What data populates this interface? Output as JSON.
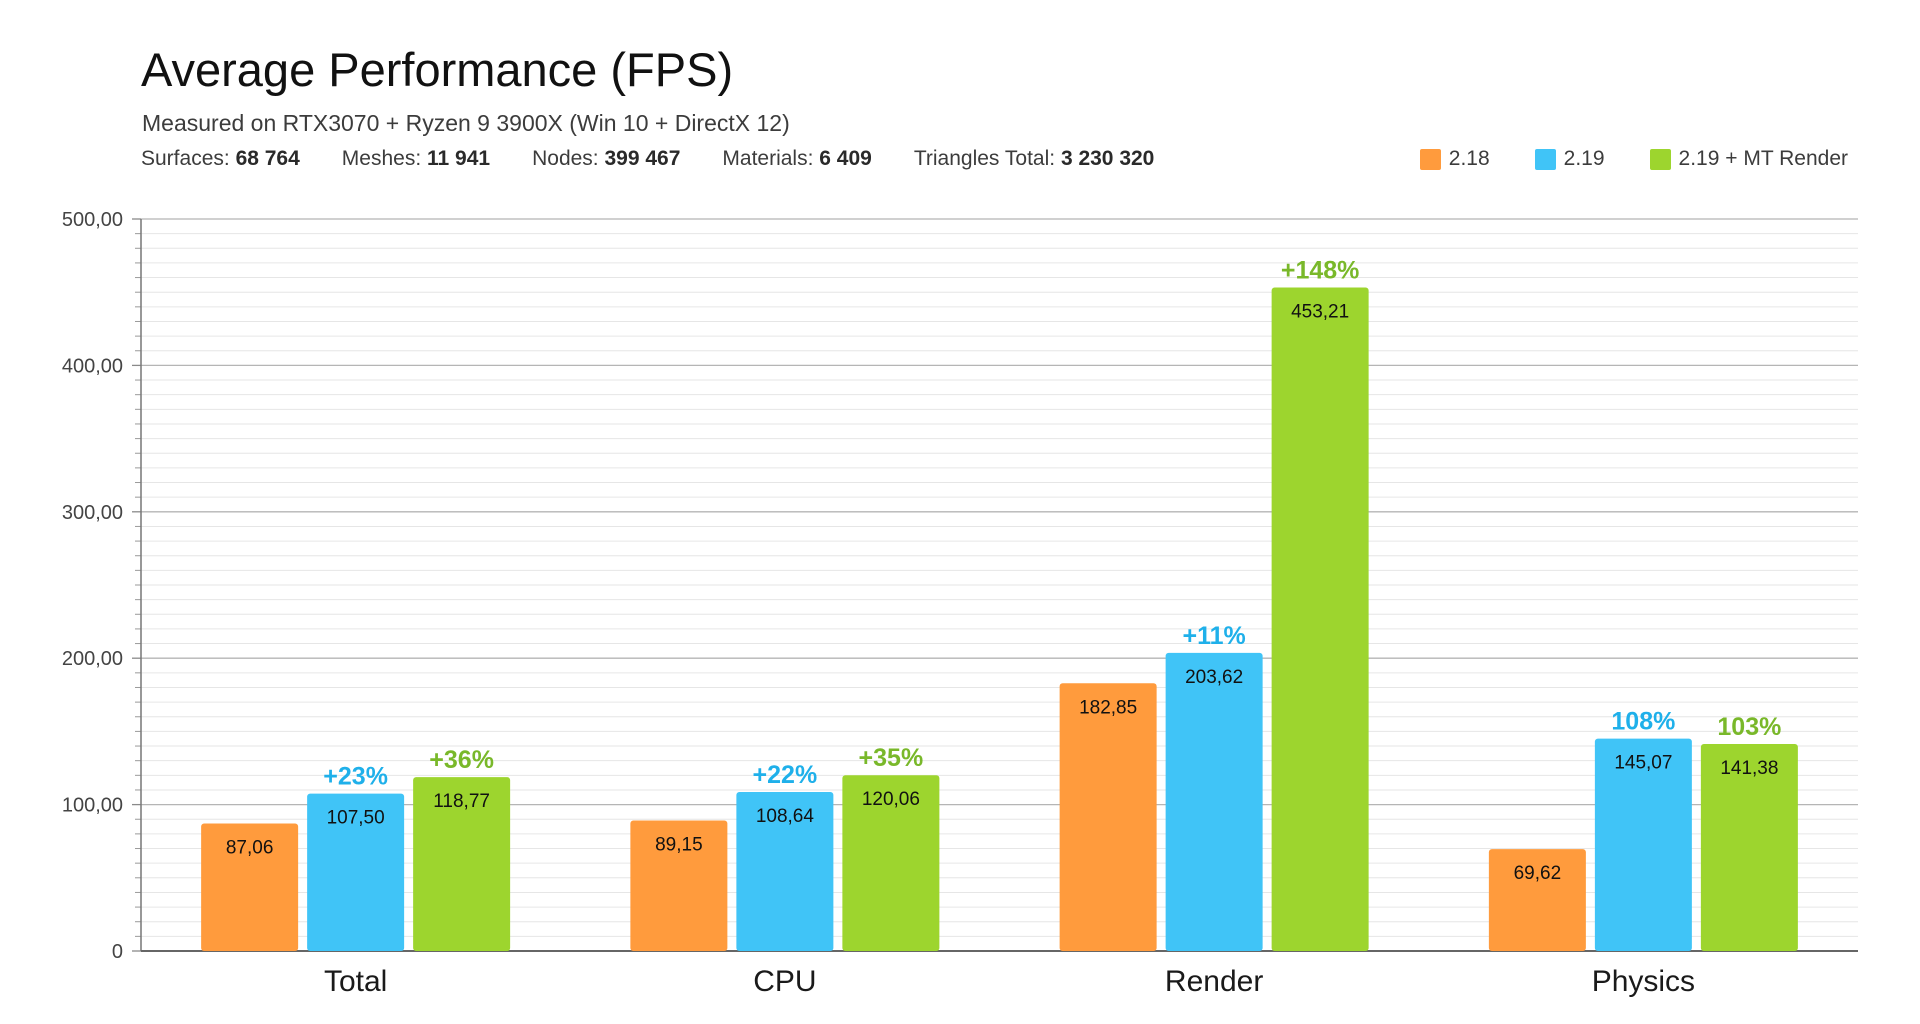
{
  "chart_data": {
    "type": "bar",
    "title": "Average Performance (FPS)",
    "subtitle": "Measured on RTX3070 + Ryzen 9 3900X (Win 10 + DirectX 12)",
    "stats": [
      {
        "label": "Surfaces:",
        "value": "68 764"
      },
      {
        "label": "Meshes:",
        "value": "11 941"
      },
      {
        "label": "Nodes:",
        "value": "399 467"
      },
      {
        "label": "Materials:",
        "value": "6 409"
      },
      {
        "label": "Triangles Total:",
        "value": "3 230 320"
      }
    ],
    "categories": [
      "Total",
      "CPU",
      "Render",
      "Physics"
    ],
    "series": [
      {
        "name": "2.18",
        "color": "#ff9b3d",
        "values": [
          87.06,
          89.15,
          182.85,
          69.62
        ],
        "value_labels": [
          "87,06",
          "89,15",
          "182,85",
          "69,62"
        ],
        "annotations": [
          "",
          "",
          "",
          ""
        ]
      },
      {
        "name": "2.19",
        "color": "#40c4f7",
        "values": [
          107.5,
          108.64,
          203.62,
          145.07
        ],
        "value_labels": [
          "107,50",
          "108,64",
          "203,62",
          "145,07"
        ],
        "annotations": [
          "+23%",
          "+22%",
          "+11%",
          "108%"
        ]
      },
      {
        "name": "2.19 + MT Render",
        "color": "#9dd52e",
        "values": [
          118.77,
          120.06,
          453.21,
          141.38
        ],
        "value_labels": [
          "118,77",
          "120,06",
          "453,21",
          "141,38"
        ],
        "annotations": [
          "+36%",
          "+35%",
          "+148%",
          "103%"
        ]
      }
    ],
    "annotation_colors": [
      "#ff9b3d",
      "#1fb0ea",
      "#79b82a"
    ],
    "ylim": [
      0,
      500
    ],
    "yticks": [
      0,
      100,
      200,
      300,
      400,
      500
    ],
    "ytick_labels": [
      "0",
      "100,00",
      "200,00",
      "300,00",
      "400,00",
      "500,00"
    ],
    "xlabel": "",
    "ylabel": "",
    "grid": true,
    "legend_position": "top-right"
  }
}
